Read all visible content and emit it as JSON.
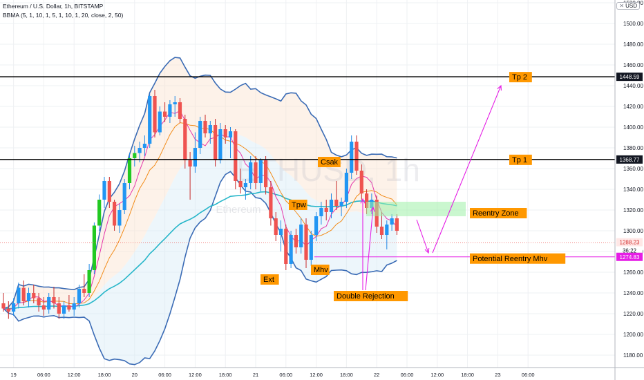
{
  "header": {
    "title": "Ethereum / U.S. Dollar, 1h, BITSTAMP",
    "indicator": "BBMA (5, 1, 10, 1, 5, 1, 10, 1, 20, close, 2, 50)",
    "currency_button": "USD"
  },
  "watermark": "ETHUSD, 1h",
  "watermark_sub": "Ethereum",
  "colors": {
    "bull": "#26a69a",
    "bull_strong": "#22c922",
    "bear": "#ef5350",
    "bb_band": "#3a6bb5",
    "ma_magenta": "#e535ab",
    "ma_orange": "#f28c1a",
    "ema50": "#26b6c9",
    "annotation": "#e51ee5",
    "label_bg": "#ff9800",
    "zone": "#9ef0a8"
  },
  "chart_data": {
    "type": "candlestick",
    "title": "Ethereum / U.S. Dollar, 1h, BITSTAMP",
    "ylim": [
      1168,
      1522
    ],
    "yticks": [
      1180,
      1200,
      1220,
      1240,
      1260,
      1280,
      1300,
      1320,
      1340,
      1360,
      1380,
      1400,
      1420,
      1440,
      1460,
      1480,
      1500,
      1520
    ],
    "xticks": [
      "19",
      "06:00",
      "12:00",
      "18:00",
      "20",
      "06:00",
      "12:00",
      "18:00",
      "21",
      "06:00",
      "12:00",
      "18:00",
      "22",
      "06:00",
      "12:00",
      "18:00",
      "23",
      "06:00"
    ],
    "grid": true,
    "candles": [
      [
        1230,
        1240,
        1222,
        1225
      ],
      [
        1225,
        1232,
        1215,
        1222
      ],
      [
        1222,
        1235,
        1218,
        1230
      ],
      [
        1230,
        1250,
        1225,
        1245
      ],
      [
        1245,
        1252,
        1228,
        1232
      ],
      [
        1232,
        1245,
        1226,
        1240
      ],
      [
        1240,
        1248,
        1230,
        1235
      ],
      [
        1235,
        1240,
        1222,
        1228
      ],
      [
        1228,
        1236,
        1218,
        1224
      ],
      [
        1224,
        1240,
        1220,
        1236
      ],
      [
        1236,
        1246,
        1225,
        1230
      ],
      [
        1230,
        1236,
        1215,
        1220
      ],
      [
        1220,
        1232,
        1215,
        1228
      ],
      [
        1228,
        1238,
        1222,
        1224
      ],
      [
        1224,
        1236,
        1218,
        1230
      ],
      [
        1230,
        1248,
        1226,
        1244
      ],
      [
        1244,
        1258,
        1236,
        1240
      ],
      [
        1240,
        1268,
        1236,
        1262
      ],
      [
        1262,
        1308,
        1258,
        1305
      ],
      [
        1305,
        1335,
        1300,
        1330
      ],
      [
        1330,
        1352,
        1322,
        1348
      ],
      [
        1348,
        1352,
        1322,
        1328
      ],
      [
        1328,
        1330,
        1300,
        1305
      ],
      [
        1305,
        1326,
        1298,
        1320
      ],
      [
        1320,
        1350,
        1316,
        1346
      ],
      [
        1346,
        1375,
        1340,
        1370
      ],
      [
        1370,
        1382,
        1362,
        1375
      ],
      [
        1375,
        1386,
        1366,
        1380
      ],
      [
        1380,
        1392,
        1372,
        1384
      ],
      [
        1384,
        1432,
        1380,
        1430
      ],
      [
        1430,
        1436,
        1390,
        1395
      ],
      [
        1395,
        1420,
        1392,
        1415
      ],
      [
        1415,
        1424,
        1405,
        1410
      ],
      [
        1410,
        1426,
        1404,
        1422
      ],
      [
        1422,
        1430,
        1410,
        1424
      ],
      [
        1424,
        1428,
        1404,
        1408
      ],
      [
        1408,
        1412,
        1360,
        1368
      ],
      [
        1368,
        1376,
        1330,
        1362
      ],
      [
        1362,
        1395,
        1356,
        1380
      ],
      [
        1380,
        1410,
        1374,
        1406
      ],
      [
        1406,
        1412,
        1390,
        1394
      ],
      [
        1394,
        1406,
        1384,
        1402
      ],
      [
        1402,
        1408,
        1362,
        1368
      ],
      [
        1368,
        1404,
        1365,
        1398
      ],
      [
        1398,
        1402,
        1384,
        1390
      ],
      [
        1390,
        1400,
        1370,
        1396
      ],
      [
        1396,
        1398,
        1340,
        1348
      ],
      [
        1348,
        1360,
        1336,
        1342
      ],
      [
        1342,
        1350,
        1330,
        1346
      ],
      [
        1346,
        1372,
        1340,
        1366
      ],
      [
        1366,
        1372,
        1340,
        1346
      ],
      [
        1346,
        1370,
        1338,
        1368
      ],
      [
        1368,
        1372,
        1335,
        1342
      ],
      [
        1342,
        1348,
        1305,
        1312
      ],
      [
        1312,
        1318,
        1290,
        1296
      ],
      [
        1296,
        1310,
        1280,
        1302
      ],
      [
        1302,
        1306,
        1262,
        1268
      ],
      [
        1268,
        1300,
        1264,
        1296
      ],
      [
        1296,
        1302,
        1278,
        1284
      ],
      [
        1284,
        1312,
        1278,
        1306
      ],
      [
        1306,
        1312,
        1264,
        1272
      ],
      [
        1272,
        1300,
        1266,
        1296
      ],
      [
        1296,
        1318,
        1290,
        1314
      ],
      [
        1314,
        1328,
        1306,
        1322
      ],
      [
        1322,
        1330,
        1310,
        1318
      ],
      [
        1318,
        1336,
        1312,
        1330
      ],
      [
        1330,
        1348,
        1320,
        1324
      ],
      [
        1324,
        1332,
        1314,
        1328
      ],
      [
        1328,
        1360,
        1322,
        1356
      ],
      [
        1356,
        1392,
        1350,
        1386
      ],
      [
        1386,
        1392,
        1354,
        1358
      ],
      [
        1358,
        1364,
        1330,
        1336
      ],
      [
        1336,
        1340,
        1316,
        1322
      ],
      [
        1322,
        1336,
        1316,
        1330
      ],
      [
        1330,
        1334,
        1298,
        1304
      ],
      [
        1304,
        1318,
        1292,
        1296
      ],
      [
        1296,
        1310,
        1282,
        1306
      ],
      [
        1306,
        1316,
        1300,
        1312
      ],
      [
        1312,
        1316,
        1296,
        1300
      ]
    ],
    "annotations": {
      "levels": [
        {
          "label": "Tp 2",
          "price": 1448.59,
          "price_label": "1448.59"
        },
        {
          "label": "Tp 1",
          "price": 1368.77,
          "price_label": "1368.77"
        },
        {
          "label": "Potential Reentry Mhv",
          "price": 1274.83,
          "price_label": "1274.83"
        }
      ],
      "zone": {
        "label": "Reentry Zone",
        "price_low": 1314,
        "price_high": 1328
      },
      "current_price": {
        "price": 1288.23,
        "price_label": "1288.23",
        "countdown": "36:22"
      },
      "tags": [
        "Csak",
        "Tpw",
        "Ext",
        "Mhv",
        "Double Rejection"
      ]
    }
  }
}
